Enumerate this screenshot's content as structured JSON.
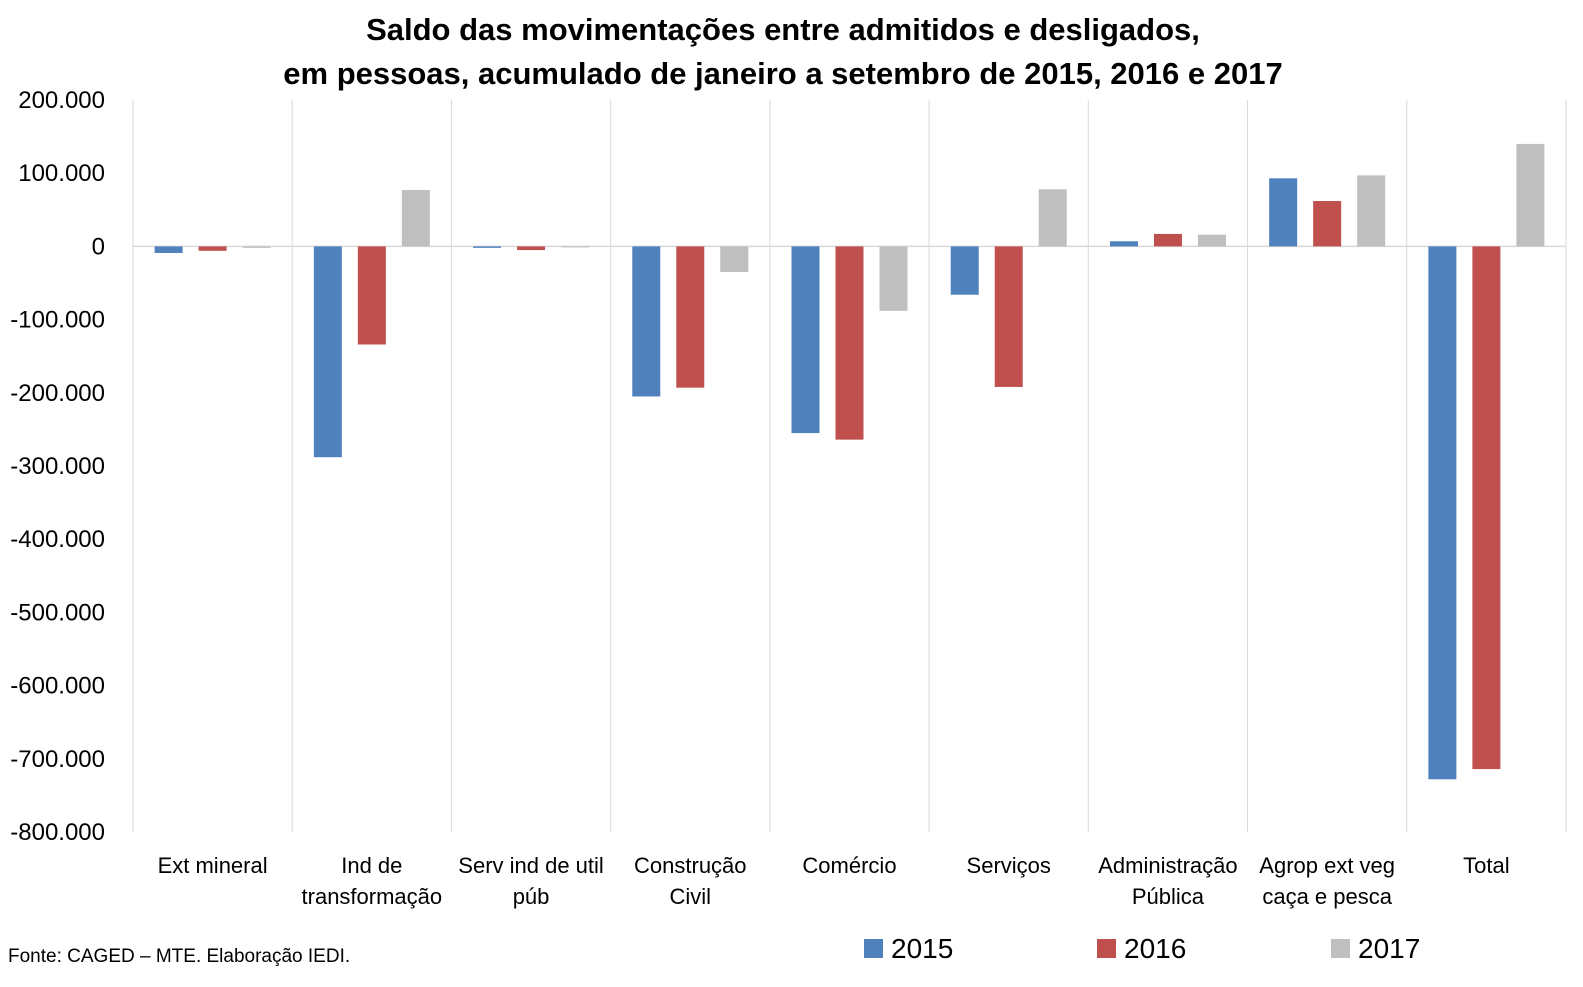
{
  "chart_data": {
    "type": "bar",
    "title_lines": [
      "Saldo das movimentações entre admitidos e desligados,",
      "em pessoas, acumulado de janeiro a setembro de 2015, 2016 e 2017"
    ],
    "categories": [
      [
        "Ext mineral"
      ],
      [
        "Ind de",
        "transformação"
      ],
      [
        "Serv ind de util",
        "púb"
      ],
      [
        "Construção",
        "Civil"
      ],
      [
        "Comércio"
      ],
      [
        "Serviços"
      ],
      [
        "Administração",
        "Pública"
      ],
      [
        "Agrop ext veg",
        "caça e pesca"
      ],
      [
        "Total"
      ]
    ],
    "series": [
      {
        "name": "2015",
        "color": "#4f81bd",
        "values": [
          -9000,
          -288000,
          -2000,
          -205000,
          -255000,
          -66000,
          7000,
          93000,
          -728000
        ]
      },
      {
        "name": "2016",
        "color": "#c0504d",
        "values": [
          -6000,
          -134000,
          -5000,
          -193000,
          -264000,
          -192000,
          17000,
          62000,
          -714000
        ]
      },
      {
        "name": "2017",
        "color": "#bfbfbf",
        "values": [
          -2000,
          77000,
          -1000,
          -35000,
          -88000,
          78000,
          16000,
          97000,
          140000
        ]
      }
    ],
    "ylim": [
      -800000,
      200000
    ],
    "yticks": [
      200000,
      100000,
      0,
      -100000,
      -200000,
      -300000,
      -400000,
      -500000,
      -600000,
      -700000,
      -800000
    ],
    "ytick_labels": [
      "200.000",
      "100.000",
      "0",
      "-100.000",
      "-200.000",
      "-300.000",
      "-400.000",
      "-500.000",
      "-600.000",
      "-700.000",
      "-800.000"
    ],
    "grid": "vertical category separators",
    "legend": "bottom"
  },
  "source": "Fonte: CAGED – MTE. Elaboração IEDI."
}
